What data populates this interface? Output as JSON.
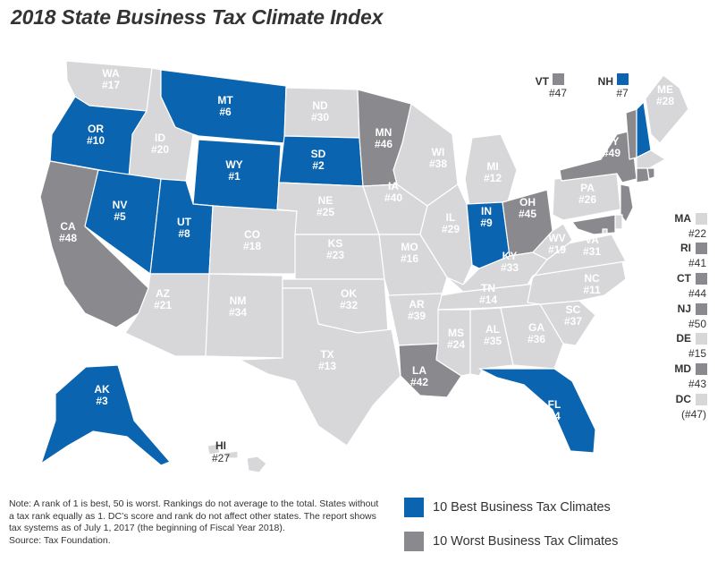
{
  "title": "2018 State Business Tax Climate Index",
  "colors": {
    "best": "#0a64b0",
    "worst": "#8a8a8e",
    "neutral": "#d7d7d9",
    "border": "#ffffff",
    "label_on_dark": "#ffffff",
    "label_on_light": "#ffffff"
  },
  "states": [
    {
      "abbr": "WA",
      "rank": "#17",
      "category": "neutral"
    },
    {
      "abbr": "OR",
      "rank": "#10",
      "category": "best"
    },
    {
      "abbr": "CA",
      "rank": "#48",
      "category": "worst"
    },
    {
      "abbr": "ID",
      "rank": "#20",
      "category": "neutral"
    },
    {
      "abbr": "NV",
      "rank": "#5",
      "category": "best"
    },
    {
      "abbr": "MT",
      "rank": "#6",
      "category": "best"
    },
    {
      "abbr": "WY",
      "rank": "#1",
      "category": "best"
    },
    {
      "abbr": "UT",
      "rank": "#8",
      "category": "best"
    },
    {
      "abbr": "AZ",
      "rank": "#21",
      "category": "neutral"
    },
    {
      "abbr": "CO",
      "rank": "#18",
      "category": "neutral"
    },
    {
      "abbr": "NM",
      "rank": "#34",
      "category": "neutral"
    },
    {
      "abbr": "ND",
      "rank": "#30",
      "category": "neutral"
    },
    {
      "abbr": "SD",
      "rank": "#2",
      "category": "best"
    },
    {
      "abbr": "NE",
      "rank": "#25",
      "category": "neutral"
    },
    {
      "abbr": "KS",
      "rank": "#23",
      "category": "neutral"
    },
    {
      "abbr": "OK",
      "rank": "#32",
      "category": "neutral"
    },
    {
      "abbr": "TX",
      "rank": "#13",
      "category": "neutral"
    },
    {
      "abbr": "MN",
      "rank": "#46",
      "category": "worst"
    },
    {
      "abbr": "IA",
      "rank": "#40",
      "category": "neutral"
    },
    {
      "abbr": "MO",
      "rank": "#16",
      "category": "neutral"
    },
    {
      "abbr": "AR",
      "rank": "#39",
      "category": "neutral"
    },
    {
      "abbr": "LA",
      "rank": "#42",
      "category": "worst"
    },
    {
      "abbr": "WI",
      "rank": "#38",
      "category": "neutral"
    },
    {
      "abbr": "IL",
      "rank": "#29",
      "category": "neutral"
    },
    {
      "abbr": "MI",
      "rank": "#12",
      "category": "neutral"
    },
    {
      "abbr": "IN",
      "rank": "#9",
      "category": "best"
    },
    {
      "abbr": "OH",
      "rank": "#45",
      "category": "worst"
    },
    {
      "abbr": "KY",
      "rank": "#33",
      "category": "neutral"
    },
    {
      "abbr": "TN",
      "rank": "#14",
      "category": "neutral"
    },
    {
      "abbr": "MS",
      "rank": "#24",
      "category": "neutral"
    },
    {
      "abbr": "AL",
      "rank": "#35",
      "category": "neutral"
    },
    {
      "abbr": "GA",
      "rank": "#36",
      "category": "neutral"
    },
    {
      "abbr": "FL",
      "rank": "#4",
      "category": "best"
    },
    {
      "abbr": "SC",
      "rank": "#37",
      "category": "neutral"
    },
    {
      "abbr": "NC",
      "rank": "#11",
      "category": "neutral"
    },
    {
      "abbr": "VA",
      "rank": "#31",
      "category": "neutral"
    },
    {
      "abbr": "WV",
      "rank": "#19",
      "category": "neutral"
    },
    {
      "abbr": "PA",
      "rank": "#26",
      "category": "neutral"
    },
    {
      "abbr": "NY",
      "rank": "#49",
      "category": "worst"
    },
    {
      "abbr": "ME",
      "rank": "#28",
      "category": "neutral"
    },
    {
      "abbr": "VT",
      "rank": "#47",
      "category": "worst"
    },
    {
      "abbr": "NH",
      "rank": "#7",
      "category": "best"
    },
    {
      "abbr": "AK",
      "rank": "#3",
      "category": "best"
    },
    {
      "abbr": "HI",
      "rank": "#27",
      "category": "neutral"
    },
    {
      "abbr": "MA",
      "rank": "#22",
      "category": "neutral"
    },
    {
      "abbr": "RI",
      "rank": "#41",
      "category": "worst"
    },
    {
      "abbr": "CT",
      "rank": "#44",
      "category": "worst"
    },
    {
      "abbr": "NJ",
      "rank": "#50",
      "category": "worst"
    },
    {
      "abbr": "DE",
      "rank": "#15",
      "category": "neutral"
    },
    {
      "abbr": "MD",
      "rank": "#43",
      "category": "worst"
    },
    {
      "abbr": "DC",
      "rank": "(#47)",
      "category": "neutral"
    }
  ],
  "note": {
    "text": "Note: A rank of 1 is best, 50 is worst. Rankings do not average to the total. States without a tax rank equally as 1. DC’s score and rank do not affect other states. The report shows tax systems as of July 1, 2017 (the beginning of Fiscal Year 2018).",
    "source": "Source: Tax Foundation."
  },
  "legend": {
    "best_label": "10 Best Business Tax Climates",
    "worst_label": "10 Worst Business Tax Climates"
  }
}
